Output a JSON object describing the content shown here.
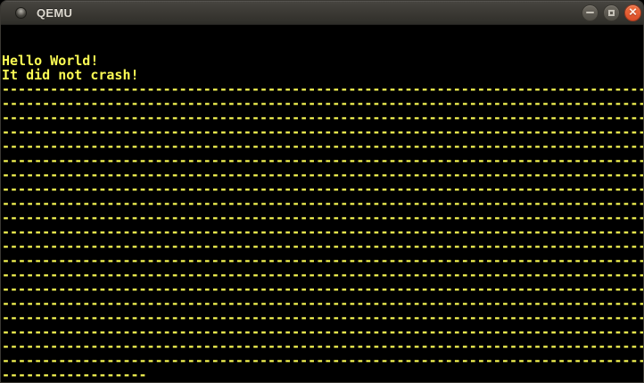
{
  "window": {
    "title": "QEMU",
    "titlebar": {
      "icon": "window-orb",
      "controls": [
        {
          "id": "minimize",
          "label": "minimize"
        },
        {
          "id": "maximize",
          "label": "maximize"
        },
        {
          "id": "close",
          "label": "close",
          "glyph": "✕"
        }
      ]
    }
  },
  "colors": {
    "titlebar_top": "#474540",
    "titlebar_bottom": "#2f2e29",
    "titlebar_text": "#dedad1",
    "button_gray": "#5e5b53",
    "button_close": "#e65a2f",
    "window_border": "#3a3833",
    "terminal_foreground": "#fcfc54",
    "terminal_background": "#000000"
  },
  "terminal": {
    "columns": 80,
    "rows": 25,
    "lines": [
      {
        "type": "text",
        "text": "",
        "repeat": 2
      },
      {
        "type": "text",
        "text": "Hello World!",
        "repeat": 1
      },
      {
        "type": "text",
        "text": "It did not crash!",
        "repeat": 1
      },
      {
        "type": "fill",
        "char": "-",
        "count": 80,
        "repeat": 20
      },
      {
        "type": "fill",
        "char": "-",
        "count": 18,
        "repeat": 1
      }
    ]
  }
}
